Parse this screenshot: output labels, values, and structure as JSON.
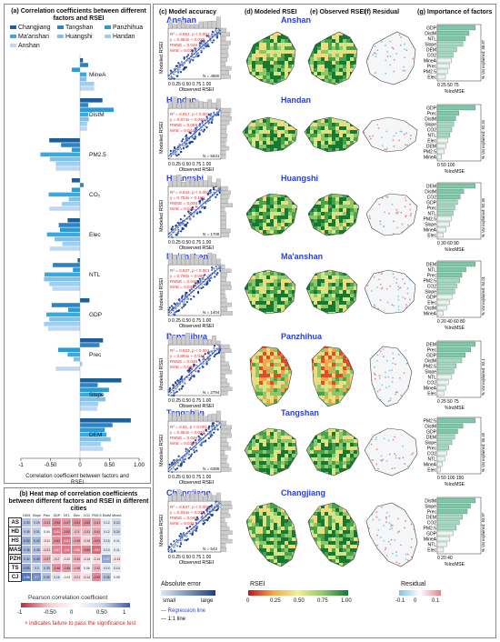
{
  "panel_a": {
    "title": "(a) Correlation coefficients between different factors and RSEI",
    "legend": [
      {
        "name": "Changjiang",
        "color": "#1d5f9a"
      },
      {
        "name": "Tangshan",
        "color": "#2a85c8"
      },
      {
        "name": "Panzhihua",
        "color": "#2b9bd5"
      },
      {
        "name": "Ma'anshan",
        "color": "#3aa9e0"
      },
      {
        "name": "Huangshi",
        "color": "#7fc3ea"
      },
      {
        "name": "Handan",
        "color": "#9fcff0"
      },
      {
        "name": "Anshan",
        "color": "#bcd8f3"
      }
    ],
    "factors": [
      "MineA",
      "DistM",
      "PM2.5",
      "CO₂",
      "Elec",
      "NTL",
      "GDP",
      "Prec",
      "Slope",
      "DEM"
    ],
    "xlabel": "Correlation coefficient between factors and RSEI",
    "ticks": [
      "-1",
      "-0.50",
      "0",
      "0.50",
      "1.00"
    ]
  },
  "chart_data": {
    "type": "bar",
    "categories": [
      "MineA",
      "DistM",
      "PM2.5",
      "CO2",
      "Elec",
      "NTL",
      "GDP",
      "Prec",
      "Slope",
      "DEM"
    ],
    "series": [
      {
        "name": "Changjiang",
        "values": [
          0.05,
          0.38,
          -0.52,
          -0.14,
          -0.21,
          -0.04,
          0.16,
          0.39,
          0.7,
          0.86
        ]
      },
      {
        "name": "Tangshan",
        "values": [
          0.14,
          0.14,
          -0.32,
          0.06,
          -0.36,
          -0.46,
          -0.48,
          0.33,
          0.3,
          0.55
        ]
      },
      {
        "name": "Panzhihua",
        "values": [
          -0.14,
          0.57,
          -0.14,
          -0.14,
          -0.34,
          -0.12,
          -0.2,
          -0.37,
          0.49,
          0.42
        ]
      },
      {
        "name": "Ma'anshan",
        "values": [
          0.11,
          0.14,
          -0.67,
          -0.53,
          -0.56,
          -0.6,
          -0.57,
          -0.21,
          0.38,
          0.45
        ]
      },
      {
        "name": "Huangshi",
        "values": [
          0.11,
          0.15,
          -0.51,
          -0.19,
          -0.43,
          -0.61,
          -0.52,
          -0.11,
          0.43,
          0.52
        ]
      },
      {
        "name": "Handan",
        "values": [
          0.24,
          0.12,
          -0.41,
          -0.31,
          -0.3,
          -0.52,
          -0.61,
          0.04,
          0.31,
          0.35
        ]
      },
      {
        "name": "Anshan",
        "values": [
          0.24,
          0.12,
          -0.41,
          -0.52,
          -0.51,
          -0.47,
          -0.54,
          -0.41,
          0.29,
          0.39
        ]
      }
    ],
    "xlim": [
      -1,
      1
    ],
    "xlabel": "Correlation coefficient between factors and RSEI"
  },
  "panel_b": {
    "title": "(b) Heat map of correlation coefficients between different factors and RSEI in different cities",
    "columns": [
      "DEM",
      "Slope",
      "Prec",
      "GDP",
      "NTL",
      "Elec",
      "CO2",
      "PM2.5",
      "DistM",
      "MineA"
    ],
    "rows": [
      {
        "city": "AS",
        "values": [
          "0.39",
          "0.29",
          "-0.41",
          "-0.54",
          "-0.47",
          "-0.51",
          "-0.52",
          "-0.41",
          "0.12",
          "0.24"
        ]
      },
      {
        "city": "HD",
        "values": [
          "0.35",
          "0.31",
          "0.04",
          "-0.61",
          "-0.52",
          "-0.3",
          "-0.31",
          "-0.41",
          "0.12",
          "0.24"
        ]
      },
      {
        "city": "HS",
        "values": [
          "0.52",
          "0.43",
          "-0.11",
          "-0.52",
          "-0.61",
          "-0.43",
          "-0.19",
          "-0.51",
          "0.15",
          "0.11"
        ]
      },
      {
        "city": "MAS",
        "values": [
          "0.45",
          "0.38",
          "-0.21",
          "-0.57",
          "-0.6",
          "-0.56",
          "-0.53",
          "-0.67",
          "0.14",
          "0.11"
        ]
      },
      {
        "city": "PZH",
        "values": [
          "0.42",
          "0.49",
          "-0.37",
          "-0.2",
          "-0.12",
          "-0.34",
          "-0.14",
          "-0.14",
          "0.57",
          "-0.14"
        ]
      },
      {
        "city": "TS",
        "values": [
          "0.55",
          "0.3",
          "0.33",
          "-0.48",
          "-0.46",
          "-0.36",
          "0.06",
          "-0.32",
          "0.14",
          "0.14"
        ]
      },
      {
        "city": "CJ",
        "values": [
          "0.86",
          "0.7",
          "0.39",
          "0.16",
          "-0.04",
          "-0.21",
          "-0.14",
          "-0.52",
          "0.38",
          "0.05"
        ]
      }
    ],
    "legend_title": "Pearson correlation coefficient",
    "legend_ticks": [
      "-1",
      "-0.50",
      "0",
      "0.50",
      "1"
    ],
    "note": "× indicates failure to pass the significance test"
  },
  "panel_c": {
    "title": "(c) Model accuracy",
    "xlabel": "Observed RSEI",
    "ylabel": "Modeled RSEI",
    "ticks": "0 0.25 0.50 0.75 1.00"
  },
  "panel_d": {
    "title": "(d) Modeled RSEI"
  },
  "panel_e": {
    "title": "(e) Observed RSEI"
  },
  "panel_f": {
    "title": "(f) Residual"
  },
  "panel_g": {
    "title": "(g) Importance of factors",
    "xlabel": "%IncMSE"
  },
  "cities": [
    {
      "name": "Anshan",
      "n": "N = 4860",
      "stats": [
        "R² = 0.952, p < 0.001",
        "y = 0.954x + 0.025",
        "RMSE = 0.046",
        "MAE = 0.034"
      ],
      "factors": [
        "GDP",
        "DistM",
        "NTL",
        "Slope",
        "DEM",
        "CO2",
        "MineA",
        "Prec",
        "PM2.5",
        "Elec"
      ],
      "imp": [
        74,
        62,
        55,
        50,
        38,
        31,
        28,
        24,
        20,
        16
      ],
      "var": "% Var explained: 88.87",
      "axis": "0 25 50 75"
    },
    {
      "name": "Handan",
      "n": "N = 5631",
      "stats": [
        "R² = 0.917, p < 0.001",
        "y = 0.874x + 0.060",
        "RMSE = 0.056",
        "MAE = 0.042"
      ],
      "factors": [
        "GDP",
        "Prec",
        "DistM",
        "Slope",
        "CO2",
        "NTL",
        "Elec",
        "DEM",
        "PM2.5",
        "MineA"
      ],
      "imp": [
        120,
        68,
        58,
        52,
        46,
        40,
        34,
        28,
        22,
        14
      ],
      "var": "% Var explained: 92.34",
      "axis": "0 50 100"
    },
    {
      "name": "Huangshi",
      "n": "N = 1708",
      "stats": [
        "R² = 0.943, p < 0.001",
        "y = 0.784x + 0.119",
        "RMSE = 0.046",
        "MAE = 0.034"
      ],
      "factors": [
        "DEM",
        "DistM",
        "CO2",
        "GDP",
        "Prec",
        "NTL",
        "PM2.5",
        "Slope",
        "MineA",
        "Elec"
      ],
      "imp": [
        86,
        60,
        52,
        46,
        40,
        36,
        32,
        28,
        20,
        14
      ],
      "var": "% Var explained: 82.36",
      "axis": "0 30 60 90"
    },
    {
      "name": "Ma'anshan",
      "n": "N = 1404",
      "stats": [
        "R² = 0.937, p < 0.001",
        "y = 0.790x + 0.099",
        "RMSE = 0.046",
        "MAE = 0.034"
      ],
      "factors": [
        "DEM",
        "NTL",
        "Prec",
        "PM2.5",
        "CO2",
        "Slope",
        "GDP",
        "Elec",
        "DistM",
        "MineA"
      ],
      "imp": [
        74,
        56,
        48,
        44,
        38,
        34,
        30,
        24,
        18,
        12
      ],
      "var": "% Var explained: 84.01",
      "axis": "0 20 40 60 80"
    },
    {
      "name": "Panzhihua",
      "n": "N = 2794",
      "stats": [
        "R² = 0.923, p < 0.001",
        "y = 0.894x + 0.042",
        "RMSE = 0.046",
        "MAE = 0.034"
      ],
      "factors": [
        "DEM",
        "Prec",
        "GDP",
        "DistM",
        "PM2.5",
        "Slope",
        "NTL",
        "CO2",
        "MineA",
        "Elec"
      ],
      "imp": [
        68,
        60,
        50,
        44,
        34,
        30,
        26,
        20,
        16,
        12
      ],
      "var": "% Var explained: 92.1",
      "axis": "0 25 50 75"
    },
    {
      "name": "Tangshan",
      "n": "N = 6388",
      "stats": [
        "R² = 0.91, p < 0.001",
        "y = 0.954x + 0.020",
        "RMSE = 0.046",
        "MAE = 0.034"
      ],
      "factors": [
        "PM2.5",
        "DistM",
        "GDP",
        "DEM",
        "Slope",
        "Prec",
        "CO2",
        "NTL",
        "MineA",
        "Elec"
      ],
      "imp": [
        130,
        88,
        70,
        60,
        50,
        40,
        32,
        26,
        18,
        12
      ],
      "var": "% Var explained: 90.45",
      "axis": "0 50 100 150"
    },
    {
      "name": "Changjiang",
      "n": "N = 543",
      "stats": [
        "R² = 0.947, p < 0.001",
        "y = 0.934x + 0.032",
        "RMSE = 0.046",
        "MAE = 0.034"
      ],
      "factors": [
        "DistM",
        "Slope",
        "Prec",
        "DEM",
        "CO2",
        "PM2.5",
        "GDP",
        "MineA",
        "NTL",
        "Elec"
      ],
      "imp": [
        48,
        42,
        38,
        32,
        28,
        24,
        20,
        16,
        12,
        8
      ],
      "var": "% Var explained: 93.97",
      "axis": "0 20 40"
    }
  ],
  "bottom_legends": {
    "abs_error": "Absolute error",
    "small": "small",
    "large": "large",
    "reg_line": "Regression line",
    "one_line": "1:1 line",
    "rsei": "RSEI",
    "rsei_ticks": [
      "0",
      "0.25",
      "0.50",
      "0.75",
      "1.00"
    ],
    "residual": "Residual",
    "res_ticks": [
      "-0.1",
      "0",
      "0.1"
    ]
  }
}
